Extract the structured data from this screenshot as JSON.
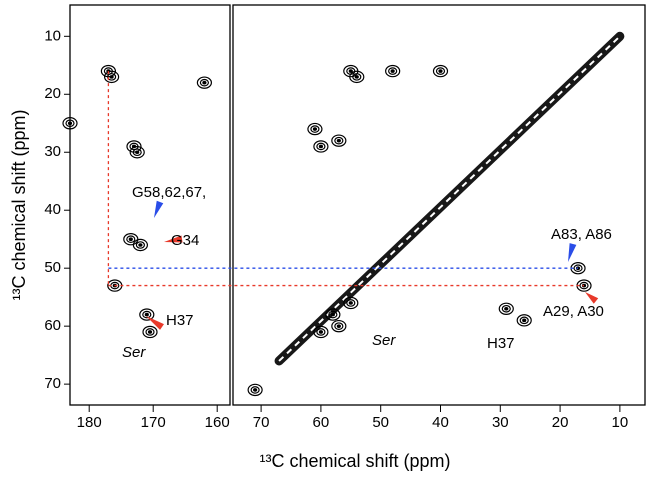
{
  "chart_data": [
    {
      "type": "contour",
      "ylabel": "¹³C chemical shift (ppm)",
      "xlim": [
        183,
        158
      ],
      "xticks": [
        180,
        170,
        160
      ],
      "ylim": [
        4.6,
        73.6
      ],
      "yticks": [
        10,
        20,
        30,
        40,
        50,
        60,
        70
      ],
      "color": "#000000",
      "peaks": {
        "x": [
          177,
          176.5,
          173,
          172.5,
          173.5,
          172,
          171,
          170.5,
          176,
          162,
          183
        ],
        "y": [
          16,
          17,
          29,
          30,
          45,
          46,
          58,
          61,
          53,
          18,
          25
        ]
      },
      "guides": [
        {
          "color": "#e8392a",
          "y": 53,
          "x": [
            177,
            16
          ],
          "y_top": 16
        },
        {
          "color": "#2a4de8",
          "y": 50,
          "x": [
            177,
            17
          ]
        }
      ],
      "annotations": [
        {
          "text": "G58,62,67,",
          "color": "#2a4de8"
        },
        {
          "text": "G34",
          "color": "#e8392a"
        },
        {
          "text": "H37",
          "color": "#e8392a"
        },
        {
          "text": "Ser"
        }
      ]
    },
    {
      "type": "contour",
      "xlabel": "¹³C chemical shift (ppm)",
      "xlim": [
        74.7,
        5.8
      ],
      "xticks": [
        70,
        60,
        50,
        40,
        30,
        20,
        10
      ],
      "ylim": [
        4.6,
        73.6
      ],
      "color": "#000000",
      "diagonal": {
        "x": [
          67,
          10
        ],
        "y": [
          66,
          10
        ]
      },
      "peaks": {
        "x": [
          55,
          54,
          61,
          60,
          57,
          29,
          26,
          16,
          17,
          71,
          48,
          40,
          58,
          57,
          55,
          60
        ],
        "y": [
          16,
          17,
          26,
          29,
          28,
          57,
          59,
          53,
          50,
          71,
          16,
          16,
          58,
          60,
          56,
          61
        ]
      },
      "annotations": [
        {
          "text": "Ser"
        },
        {
          "text": "H37"
        },
        {
          "text": "A83, A86",
          "color": "#2a4de8"
        },
        {
          "text": "A29, A30",
          "color": "#e8392a"
        }
      ]
    }
  ]
}
